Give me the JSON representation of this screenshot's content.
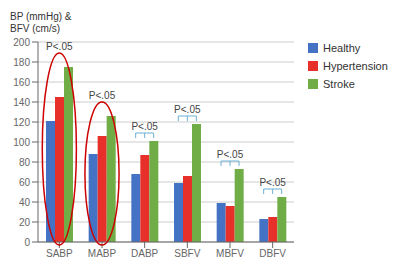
{
  "chart_data": {
    "type": "bar",
    "ylabel": "BP (mmHg) &\nBFV (cm/s)",
    "categories": [
      "SABP",
      "MABP",
      "DABP",
      "SBFV",
      "MBFV",
      "DBFV"
    ],
    "series": [
      {
        "name": "Healthy",
        "color": "#4472c4",
        "values": [
          121,
          88,
          68,
          59,
          39,
          23
        ]
      },
      {
        "name": "Hypertension",
        "color": "#e8302a",
        "values": [
          145,
          106,
          87,
          66,
          36,
          25
        ]
      },
      {
        "name": "Stroke",
        "color": "#70ad47",
        "values": [
          175,
          126,
          101,
          118,
          73,
          45
        ]
      }
    ],
    "ylim": [
      0,
      200
    ],
    "yticks": [
      0,
      20,
      40,
      60,
      80,
      100,
      120,
      140,
      160,
      180,
      200
    ],
    "grid": true,
    "legend": "upper right",
    "annotations": [
      {
        "text": "P<.05",
        "category": "SABP",
        "type": "ellipse",
        "color": "#cc0000"
      },
      {
        "text": "P<.05",
        "category": "MABP",
        "type": "ellipse",
        "color": "#cc0000"
      },
      {
        "text": "P<.05",
        "category": "DABP",
        "type": "bracket",
        "color": "#6ab0d4"
      },
      {
        "text": "P<.05",
        "category": "SBFV",
        "type": "bracket",
        "color": "#6ab0d4"
      },
      {
        "text": "P<.05",
        "category": "MBFV",
        "type": "bracket",
        "color": "#6ab0d4"
      },
      {
        "text": "P<.05",
        "category": "DBFV",
        "type": "bracket",
        "color": "#6ab0d4"
      }
    ]
  }
}
